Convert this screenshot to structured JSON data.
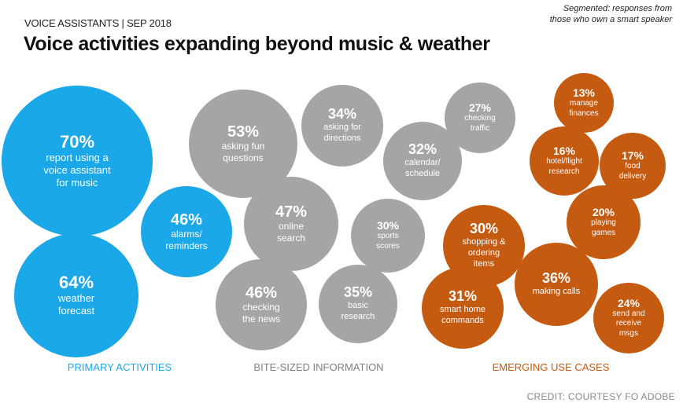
{
  "header": {
    "kicker": "VOICE ASSISTANTS | SEP 2018",
    "title": "Voice activities expanding beyond music & weather",
    "note": "Segmented: responses from\nthose who own a smart speaker"
  },
  "colors": {
    "primary": "#1ba8e8",
    "bite_sized": "#a5a5a5",
    "emerging": "#c55a11"
  },
  "chart_data": {
    "type": "bubble",
    "title": "Voice activities expanding beyond music & weather",
    "unit": "% of smart speaker owners",
    "groups": [
      {
        "name": "PRIMARY ACTIVITIES",
        "items": [
          {
            "value": 70,
            "pct": "70%",
            "label": "report using a\nvoice assistant\nfor music"
          },
          {
            "value": 64,
            "pct": "64%",
            "label": "weather\nforecast"
          },
          {
            "value": 46,
            "pct": "46%",
            "label": "alarms/\nreminders"
          }
        ]
      },
      {
        "name": "BITE-SIZED INFORMATION",
        "items": [
          {
            "value": 53,
            "pct": "53%",
            "label": "asking fun\nquestions"
          },
          {
            "value": 34,
            "pct": "34%",
            "label": "asking for\ndirections"
          },
          {
            "value": 27,
            "pct": "27%",
            "label": "checking\ntraffic"
          },
          {
            "value": 32,
            "pct": "32%",
            "label": "calendar/\nschedule"
          },
          {
            "value": 47,
            "pct": "47%",
            "label": "online\nsearch"
          },
          {
            "value": 30,
            "pct": "30%",
            "label": "sports\nscores"
          },
          {
            "value": 46,
            "pct": "46%",
            "label": "checking\nthe news"
          },
          {
            "value": 35,
            "pct": "35%",
            "label": "basic\nresearch"
          }
        ]
      },
      {
        "name": "EMERGING USE CASES",
        "items": [
          {
            "value": 13,
            "pct": "13%",
            "label": "manage\nfinances"
          },
          {
            "value": 16,
            "pct": "16%",
            "label": "hotel/flight\nresearch"
          },
          {
            "value": 17,
            "pct": "17%",
            "label": "food\ndelivery"
          },
          {
            "value": 20,
            "pct": "20%",
            "label": "playing\ngames"
          },
          {
            "value": 30,
            "pct": "30%",
            "label": "shopping &\nordering\nitems"
          },
          {
            "value": 36,
            "pct": "36%",
            "label": "making calls"
          },
          {
            "value": 31,
            "pct": "31%",
            "label": "smart home\ncommands"
          },
          {
            "value": 24,
            "pct": "24%",
            "label": "send and\nreceive\nmsgs"
          }
        ]
      }
    ]
  },
  "credit": "CREDIT: COURTESY FO ADOBE"
}
